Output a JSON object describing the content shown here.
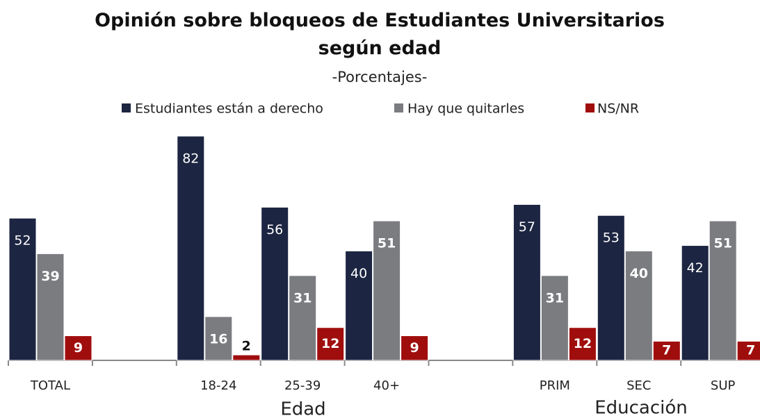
{
  "chart_data": {
    "type": "bar",
    "title": "Opinión sobre bloqueos de Estudiantes Universitarios según edad",
    "subtitle": "-Porcentajes-",
    "categories": [
      "TOTAL",
      null,
      "18-24",
      "25-39",
      "40+",
      null,
      "PRIM",
      "SEC",
      "SUP"
    ],
    "series": [
      {
        "name": "Estudiantes están a derecho",
        "color": "#1c2541",
        "values": [
          52,
          null,
          82,
          56,
          40,
          null,
          57,
          53,
          42
        ]
      },
      {
        "name": "Hay que quitarles",
        "color": "#7b7c80",
        "values": [
          39,
          null,
          16,
          31,
          51,
          null,
          31,
          40,
          51
        ]
      },
      {
        "name": "NS/NR",
        "color": "#a00d0d",
        "values": [
          9,
          null,
          2,
          12,
          9,
          null,
          12,
          7,
          7
        ]
      }
    ],
    "annotations": [
      "Edad",
      "Educación"
    ],
    "legend": "top"
  }
}
